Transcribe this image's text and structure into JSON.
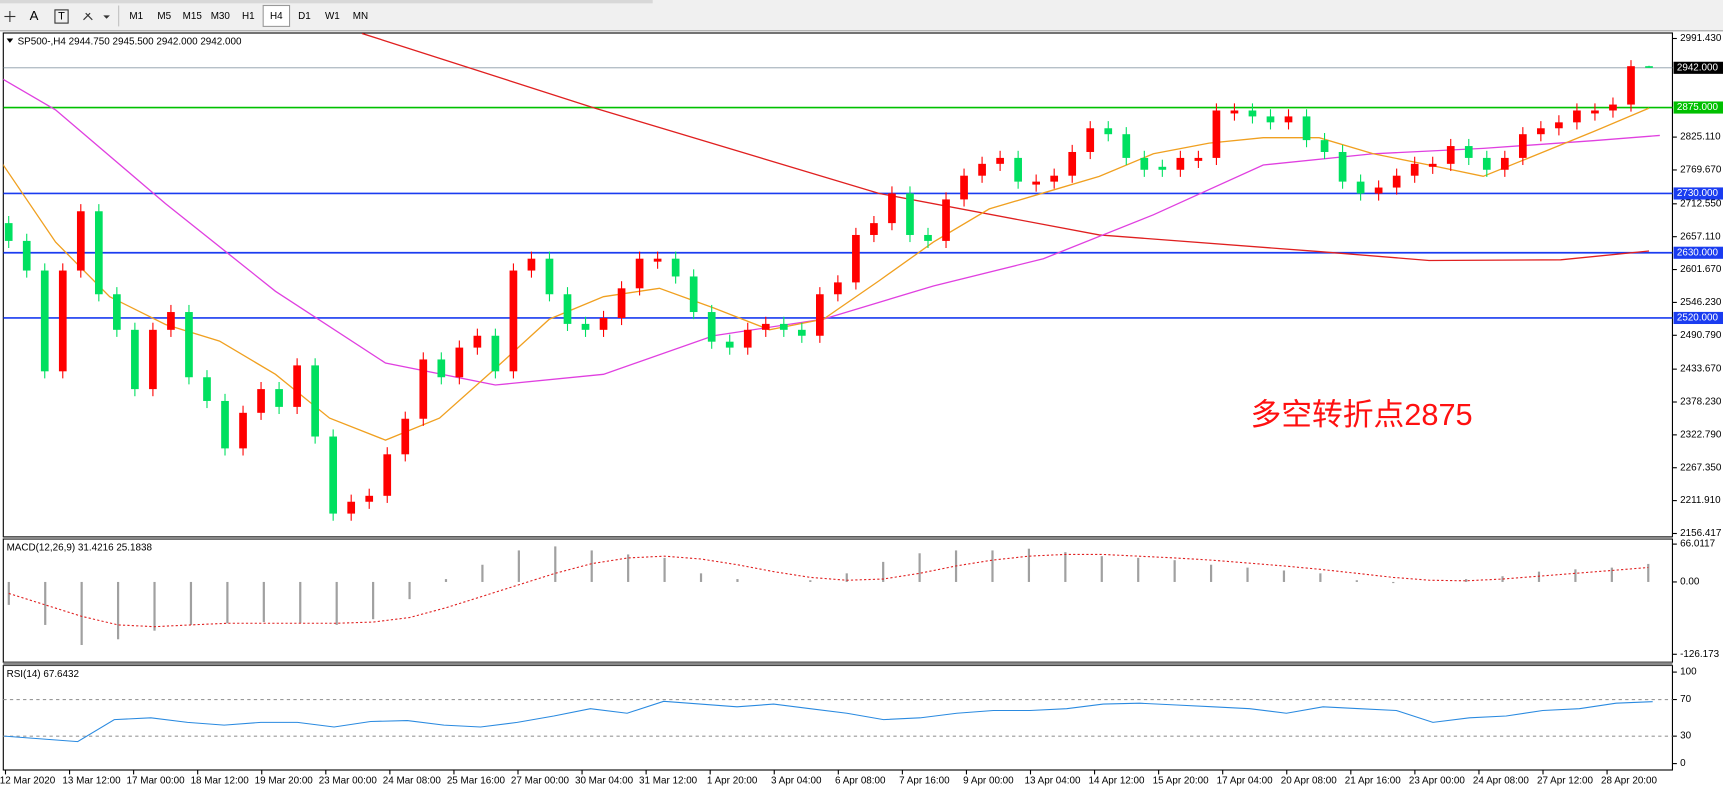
{
  "toolbar": {
    "tools": [
      "A",
      "T"
    ],
    "timeframes": [
      "M1",
      "M5",
      "M15",
      "M30",
      "H1",
      "H4",
      "D1",
      "W1",
      "MN"
    ],
    "active": "H4"
  },
  "chart_data": [
    {
      "type": "candlestick",
      "title": "SP500-,H4  2944.750 2945.500 2942.000 2942.000",
      "annotation": "多空转折点2875",
      "up_color": "#ff0000",
      "down_color": "#00e060",
      "xlim": [
        -0.3,
        92.3
      ],
      "ylim": [
        2150.85,
        3000.71
      ],
      "yticks": [
        {
          "value": 2991.43,
          "label": "2991.430"
        },
        {
          "value": 2825.11,
          "label": "2825.110"
        },
        {
          "value": 2769.67,
          "label": "2769.670"
        },
        {
          "value": 2712.55,
          "label": "2712.550"
        },
        {
          "value": 2657.11,
          "label": "2657.110"
        },
        {
          "value": 2601.67,
          "label": "2601.670"
        },
        {
          "value": 2546.23,
          "label": "2546.230"
        },
        {
          "value": 2490.79,
          "label": "2490.790"
        },
        {
          "value": 2433.67,
          "label": "2433.670"
        },
        {
          "value": 2378.23,
          "label": "2378.230"
        },
        {
          "value": 2322.79,
          "label": "2322.790"
        },
        {
          "value": 2267.35,
          "label": "2267.350"
        },
        {
          "value": 2211.91,
          "label": "2211.910"
        },
        {
          "value": 2156.417,
          "label": "2156.417"
        }
      ],
      "x_labels": [
        "12 Mar 2020",
        "13 Mar 12:00",
        "17 Mar 00:00",
        "18 Mar 12:00",
        "19 Mar 20:00",
        "23 Mar 00:00",
        "24 Mar 08:00",
        "25 Mar 16:00",
        "27 Mar 00:00",
        "30 Mar 04:00",
        "31 Mar 12:00",
        "1 Apr 20:00",
        "3 Apr 04:00",
        "6 Apr 08:00",
        "7 Apr 16:00",
        "9 Apr 00:00",
        "13 Apr 04:00",
        "14 Apr 12:00",
        "15 Apr 20:00",
        "17 Apr 04:00",
        "20 Apr 08:00",
        "21 Apr 16:00",
        "23 Apr 00:00",
        "24 Apr 08:00",
        "27 Apr 12:00",
        "28 Apr 20:00"
      ],
      "levels": {
        "values": [
          2942,
          2875,
          2730,
          2630,
          2520
        ],
        "value_labels": [
          "2942.000",
          "2875.000",
          "2730.000",
          "2630.000",
          "2520.000"
        ],
        "colors": [
          "#8a9aa8",
          "#00c000",
          "#1a3cf0",
          "#1a3cf0",
          "#1a3cf0"
        ],
        "label_colors": [
          "#000000",
          "#00c000",
          "#1a3cf0",
          "#1a3cf0",
          "#1a3cf0"
        ]
      },
      "ohlc": [
        [
          2680,
          2692,
          2638,
          2650
        ],
        [
          2650,
          2662,
          2588,
          2600
        ],
        [
          2600,
          2612,
          2418,
          2430
        ],
        [
          2430,
          2612,
          2418,
          2600
        ],
        [
          2600,
          2712,
          2588,
          2700
        ],
        [
          2700,
          2712,
          2548,
          2560
        ],
        [
          2560,
          2572,
          2488,
          2500
        ],
        [
          2500,
          2512,
          2388,
          2400
        ],
        [
          2400,
          2512,
          2388,
          2500
        ],
        [
          2500,
          2542,
          2488,
          2530
        ],
        [
          2530,
          2542,
          2408,
          2420
        ],
        [
          2420,
          2432,
          2368,
          2380
        ],
        [
          2380,
          2392,
          2288,
          2300
        ],
        [
          2300,
          2372,
          2288,
          2360
        ],
        [
          2360,
          2412,
          2348,
          2400
        ],
        [
          2400,
          2412,
          2358,
          2370
        ],
        [
          2370,
          2452,
          2358,
          2440
        ],
        [
          2440,
          2452,
          2308,
          2320
        ],
        [
          2320,
          2332,
          2178,
          2190
        ],
        [
          2190,
          2222,
          2178,
          2210
        ],
        [
          2210,
          2232,
          2198,
          2220
        ],
        [
          2220,
          2302,
          2208,
          2290
        ],
        [
          2290,
          2362,
          2278,
          2350
        ],
        [
          2350,
          2462,
          2338,
          2450
        ],
        [
          2450,
          2462,
          2408,
          2420
        ],
        [
          2420,
          2482,
          2408,
          2470
        ],
        [
          2470,
          2502,
          2458,
          2490
        ],
        [
          2490,
          2502,
          2418,
          2430
        ],
        [
          2430,
          2612,
          2418,
          2600
        ],
        [
          2600,
          2632,
          2588,
          2620
        ],
        [
          2620,
          2632,
          2548,
          2560
        ],
        [
          2560,
          2572,
          2498,
          2510
        ],
        [
          2510,
          2522,
          2488,
          2500
        ],
        [
          2500,
          2532,
          2488,
          2520
        ],
        [
          2520,
          2582,
          2508,
          2570
        ],
        [
          2570,
          2632,
          2558,
          2620
        ],
        [
          2615,
          2632,
          2603,
          2620
        ],
        [
          2620,
          2632,
          2578,
          2590
        ],
        [
          2590,
          2602,
          2518,
          2530
        ],
        [
          2530,
          2542,
          2468,
          2480
        ],
        [
          2480,
          2492,
          2458,
          2470
        ],
        [
          2470,
          2512,
          2458,
          2500
        ],
        [
          2500,
          2522,
          2488,
          2510
        ],
        [
          2510,
          2522,
          2488,
          2500
        ],
        [
          2500,
          2512,
          2478,
          2490
        ],
        [
          2490,
          2572,
          2478,
          2560
        ],
        [
          2560,
          2592,
          2548,
          2580
        ],
        [
          2580,
          2672,
          2568,
          2660
        ],
        [
          2660,
          2692,
          2648,
          2680
        ],
        [
          2680,
          2742,
          2668,
          2730
        ],
        [
          2730,
          2742,
          2648,
          2660
        ],
        [
          2660,
          2672,
          2638,
          2650
        ],
        [
          2650,
          2732,
          2638,
          2720
        ],
        [
          2720,
          2772,
          2708,
          2760
        ],
        [
          2760,
          2792,
          2748,
          2780
        ],
        [
          2780,
          2802,
          2768,
          2790
        ],
        [
          2790,
          2802,
          2738,
          2750
        ],
        [
          2745,
          2762,
          2733,
          2750
        ],
        [
          2750,
          2772,
          2738,
          2760
        ],
        [
          2760,
          2812,
          2748,
          2800
        ],
        [
          2800,
          2852,
          2788,
          2840
        ],
        [
          2840,
          2852,
          2818,
          2830
        ],
        [
          2830,
          2842,
          2778,
          2790
        ],
        [
          2790,
          2802,
          2758,
          2770
        ],
        [
          2775,
          2787,
          2758,
          2770
        ],
        [
          2770,
          2802,
          2758,
          2790
        ],
        [
          2785,
          2802,
          2773,
          2790
        ],
        [
          2790,
          2882,
          2778,
          2870
        ],
        [
          2865,
          2882,
          2853,
          2870
        ],
        [
          2870,
          2882,
          2848,
          2860
        ],
        [
          2860,
          2872,
          2838,
          2850
        ],
        [
          2850,
          2872,
          2838,
          2860
        ],
        [
          2860,
          2872,
          2808,
          2820
        ],
        [
          2820,
          2832,
          2788,
          2800
        ],
        [
          2800,
          2812,
          2738,
          2750
        ],
        [
          2750,
          2762,
          2718,
          2730
        ],
        [
          2730,
          2752,
          2718,
          2740
        ],
        [
          2740,
          2772,
          2728,
          2760
        ],
        [
          2760,
          2792,
          2748,
          2780
        ],
        [
          2775,
          2792,
          2763,
          2780
        ],
        [
          2780,
          2822,
          2768,
          2810
        ],
        [
          2810,
          2822,
          2778,
          2790
        ],
        [
          2790,
          2802,
          2758,
          2770
        ],
        [
          2770,
          2802,
          2758,
          2790
        ],
        [
          2790,
          2842,
          2778,
          2830
        ],
        [
          2830,
          2852,
          2818,
          2840
        ],
        [
          2840,
          2862,
          2828,
          2850
        ],
        [
          2850,
          2882,
          2838,
          2870
        ],
        [
          2865,
          2882,
          2853,
          2870
        ],
        [
          2870,
          2892,
          2858,
          2880
        ],
        [
          2880,
          2955,
          2868,
          2944.75
        ],
        [
          2944.75,
          2945.5,
          2942,
          2942
        ]
      ],
      "series": [
        {
          "color": "#e02020",
          "x": [
            19.6,
            32.4,
            48.3,
            60.5,
            72.7,
            78.8,
            86.1,
            91
          ],
          "values": [
            3000,
            2875,
            2730,
            2660,
            2632,
            2617,
            2618,
            2633
          ]
        },
        {
          "color": "#e040e0",
          "x": [
            -0.5,
            2.6,
            8.7,
            14.8,
            20.9,
            27,
            33,
            39.1,
            45.2,
            51.3,
            57.4,
            63.5,
            69.6,
            75.7,
            81.8,
            87.9,
            91.6
          ],
          "values": [
            2926,
            2871,
            2713,
            2565,
            2444,
            2407,
            2425,
            2490,
            2518,
            2574,
            2620,
            2694,
            2778,
            2797,
            2806,
            2819,
            2828
          ]
        },
        {
          "color": "#f0a020",
          "x": [
            -0.5,
            2.6,
            5.6,
            8.7,
            11.7,
            14.8,
            17.8,
            20.9,
            23.9,
            27,
            30,
            33,
            36.1,
            39.1,
            42.2,
            45.2,
            48.3,
            51.3,
            54.4,
            57.4,
            60.5,
            63.5,
            66.6,
            69.6,
            72.7,
            75.7,
            78.8,
            81.8,
            84.9,
            87.9,
            91
          ],
          "values": [
            2787,
            2648,
            2556,
            2509,
            2481,
            2425,
            2351,
            2314,
            2351,
            2435,
            2518,
            2556,
            2570,
            2537,
            2500,
            2518,
            2583,
            2648,
            2704,
            2731,
            2759,
            2797,
            2815,
            2824,
            2824,
            2797,
            2778,
            2759,
            2797,
            2834,
            2874
          ]
        }
      ]
    },
    {
      "type": "macd",
      "title": "MACD(12,26,9) 31.4216 25.1838",
      "ylim": [
        -140,
        73
      ],
      "yticks": [
        66.0117,
        {
          "value": 0,
          "label": "0.00"
        },
        -126.173
      ],
      "histogram": [
        -40,
        -75,
        -110,
        -100,
        -85,
        -75,
        -72,
        -70,
        -72,
        -75,
        -65,
        -30,
        5,
        30,
        55,
        62,
        55,
        48,
        42,
        15,
        5,
        0,
        3,
        15,
        35,
        50,
        55,
        55,
        58,
        52,
        45,
        42,
        38,
        30,
        25,
        20,
        15,
        3,
        -2,
        0,
        5,
        10,
        18,
        22,
        25,
        31.4216
      ],
      "signal": [
        -20,
        -40,
        -60,
        -75,
        -78,
        -75,
        -72,
        -72,
        -72,
        -72,
        -70,
        -62,
        -45,
        -25,
        -5,
        15,
        32,
        42,
        45,
        40,
        30,
        18,
        8,
        3,
        5,
        15,
        28,
        38,
        45,
        48,
        48,
        45,
        42,
        38,
        33,
        28,
        22,
        15,
        8,
        3,
        2,
        5,
        10,
        15,
        20,
        25.1838
      ],
      "hist_color": "#a0a0a0",
      "signal_color": "#e02020"
    },
    {
      "type": "line",
      "title": "RSI(14) 67.6432",
      "ylim": [
        -7,
        106
      ],
      "yticks": [
        100,
        70,
        30,
        0
      ],
      "levels": [
        70,
        30
      ],
      "color": "#2a8ae0",
      "values": [
        30,
        27,
        24,
        48,
        50,
        45,
        42,
        45,
        45,
        40,
        46,
        47,
        42,
        40,
        45,
        52,
        60,
        55,
        68,
        65,
        62,
        65,
        60,
        55,
        48,
        50,
        55,
        58,
        58,
        60,
        65,
        66,
        64,
        62,
        60,
        55,
        62,
        60,
        58,
        45,
        50,
        52,
        58,
        60,
        66,
        67.6432
      ]
    }
  ]
}
